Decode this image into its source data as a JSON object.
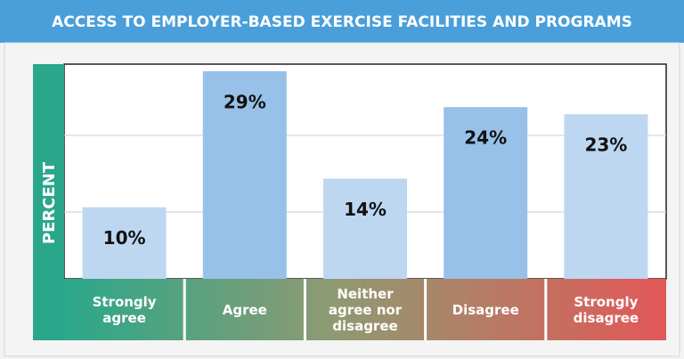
{
  "chart_data": {
    "type": "bar",
    "title": "ACCESS TO EMPLOYER-BASED EXERCISE FACILITIES AND PROGRAMS",
    "y_label": "PERCENT",
    "categories": [
      "Strongly agree",
      "Agree",
      "Neither agree nor disagree",
      "Disagree",
      "Strongly disagree"
    ],
    "values": [
      10,
      29,
      14,
      24,
      23
    ],
    "value_labels": [
      "10%",
      "29%",
      "14%",
      "24%",
      "23%"
    ],
    "colors": [
      "#bdd7f1",
      "#97c1e8",
      "#bdd7f1",
      "#97c1e8",
      "#bdd7f1"
    ],
    "ylim": [
      0,
      30
    ]
  }
}
